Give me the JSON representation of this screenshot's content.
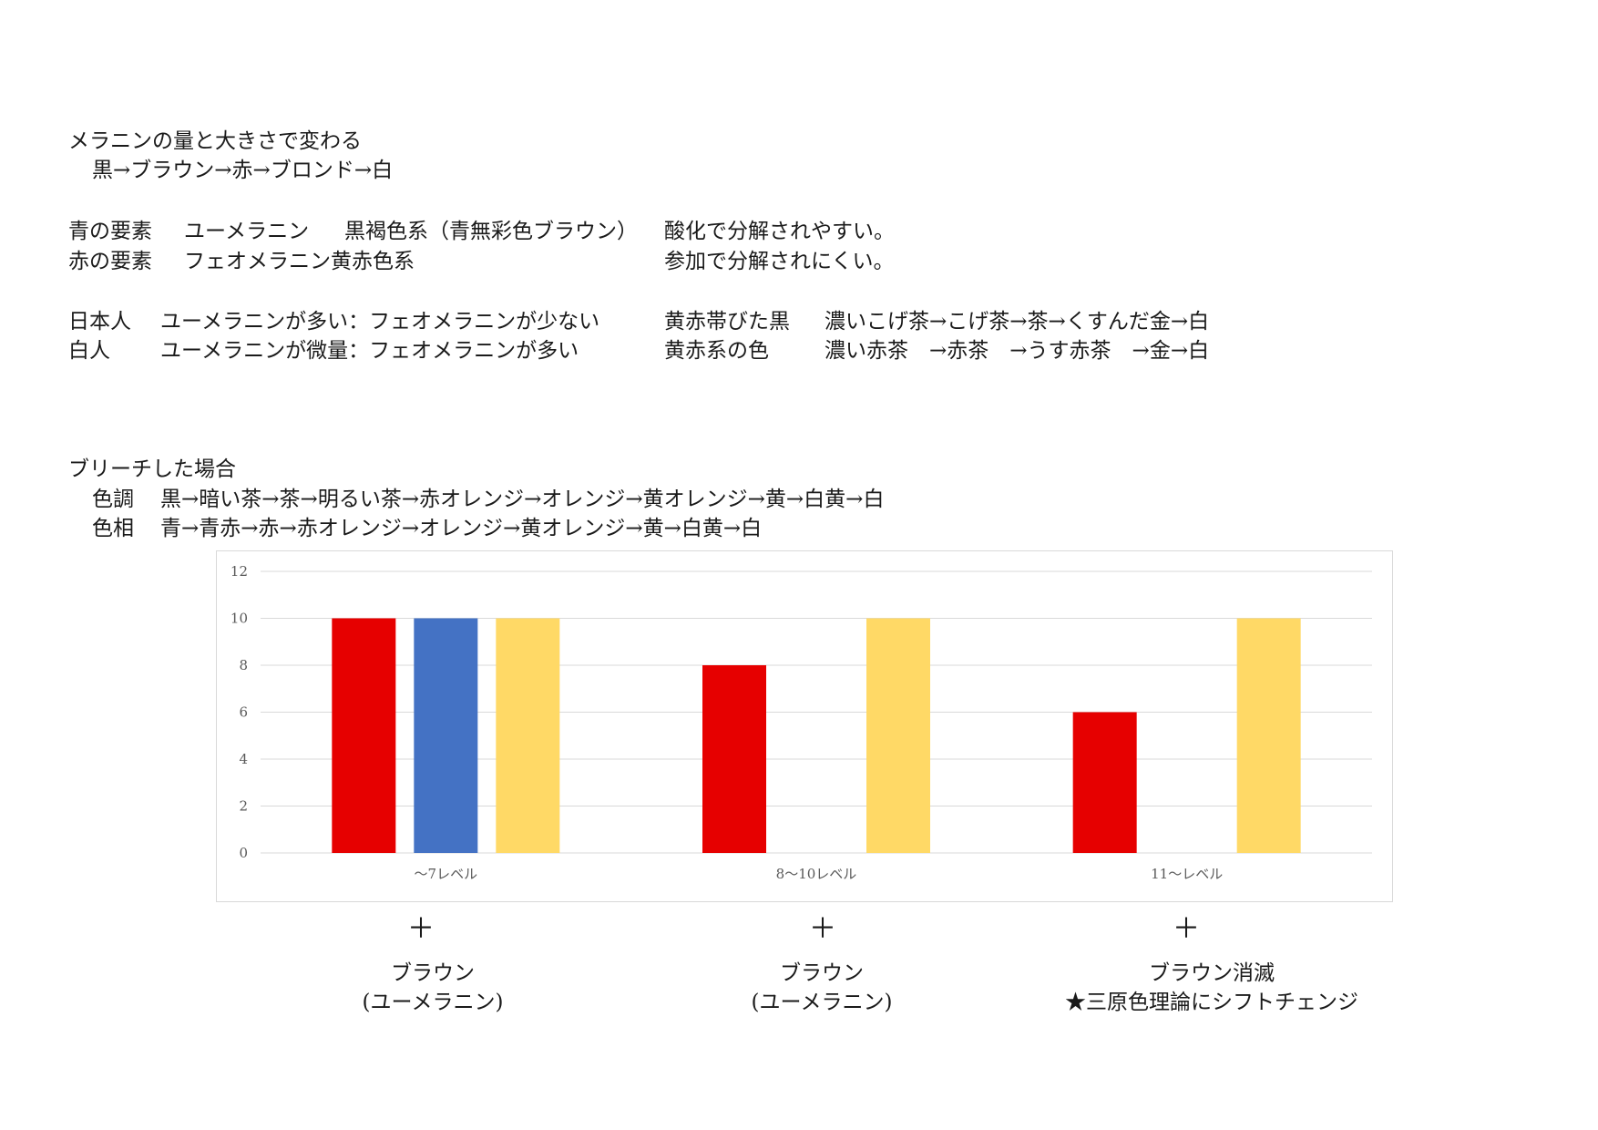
{
  "section1": {
    "title": "メラニンの量と大きさで変わる",
    "sequence": "黒→ブラウン→赤→ブロンド→白"
  },
  "elements": [
    {
      "label": "青の要素",
      "name": "ユーメラニン",
      "desc": "黒褐色系（青無彩色ブラウン）",
      "note": "酸化で分解されやすい。"
    },
    {
      "label": "赤の要素",
      "name": "フェオメラニン黄赤色系",
      "desc": "",
      "note": "参加で分解されにくい。"
    }
  ],
  "people": [
    {
      "label": "日本人",
      "ratio": "ユーメラニンが多い：フェオメラニンが少ない",
      "tone": "黄赤帯びた黒",
      "change": "濃いこげ茶→こげ茶→茶→くすんだ金→白"
    },
    {
      "label": "白人",
      "ratio": "ユーメラニンが微量：フェオメラニンが多い",
      "tone": "黄赤系の色",
      "change": "濃い赤茶　→赤茶　→うす赤茶　→金→白"
    }
  ],
  "bleach": {
    "title": "ブリーチした場合",
    "tone_label": "色調",
    "tone": "黒→暗い茶→茶→明るい茶→赤オレンジ→オレンジ→黄オレンジ→黄→白黄→白",
    "hue_label": "色相",
    "hue": "青→青赤→赤→赤オレンジ→オレンジ→黄オレンジ→黄→白黄→白"
  },
  "chart_data": {
    "type": "bar",
    "categories": [
      "〜7レベル",
      "8〜10レベル",
      "11〜レベル"
    ],
    "series": [
      {
        "values": [
          10,
          8,
          6
        ],
        "color": "#e60000"
      },
      {
        "values": [
          10,
          0,
          0
        ],
        "color": "#4472c4"
      },
      {
        "values": [
          10,
          10,
          10
        ],
        "color": "#ffd966"
      }
    ],
    "ylim": [
      0,
      12
    ],
    "yticks": [
      0,
      2,
      4,
      6,
      8,
      10,
      12
    ],
    "grid": true,
    "legend": "none"
  },
  "below_chart": [
    {
      "plus": "＋",
      "line1": "ブラウン",
      "line2": "(ユーメラニン)"
    },
    {
      "plus": "＋",
      "line1": "ブラウン",
      "line2": "(ユーメラニン)"
    },
    {
      "plus": "＋",
      "line1": "ブラウン消滅",
      "line2": "★三原色理論にシフトチェンジ"
    }
  ]
}
